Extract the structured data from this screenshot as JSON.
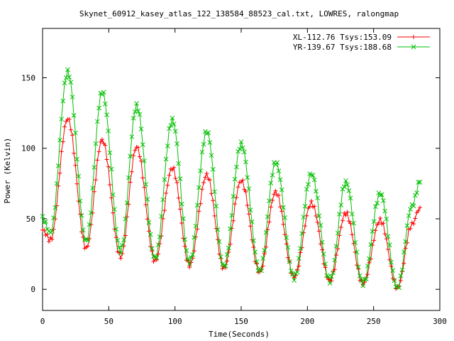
{
  "chart_data": {
    "type": "line",
    "title": "Skynet_60912_kasey_atlas_122_138584_88523_cal.txt, LOWRES, ralongmap",
    "xlabel": "Time(Seconds)",
    "ylabel": "Power (Kelvin)",
    "xlim": [
      0,
      300
    ],
    "ylim": [
      -15,
      185
    ],
    "xticks": [
      0,
      50,
      100,
      150,
      200,
      250,
      300
    ],
    "yticks": [
      0,
      50,
      100,
      150
    ],
    "grid": false,
    "legend_position": "top-right",
    "series": [
      {
        "name": "XL-112.76 Tsys:153.09",
        "color": "#ff0000",
        "marker": "plus",
        "peaks": [
          [
            0,
            42
          ],
          [
            6,
            35
          ],
          [
            19,
            121
          ],
          [
            33,
            29
          ],
          [
            45,
            106
          ],
          [
            59,
            23
          ],
          [
            71,
            101
          ],
          [
            85,
            20
          ],
          [
            98,
            86
          ],
          [
            111,
            17
          ],
          [
            124,
            81
          ],
          [
            137,
            15
          ],
          [
            150,
            77
          ],
          [
            164,
            12
          ],
          [
            176,
            69
          ],
          [
            190,
            9
          ],
          [
            203,
            61
          ],
          [
            217,
            6
          ],
          [
            229,
            54
          ],
          [
            242,
            4
          ],
          [
            255,
            49
          ],
          [
            268,
            1
          ],
          [
            279,
            46
          ],
          [
            285,
            58
          ]
        ]
      },
      {
        "name": "YR-139.67 Tsys:188.68",
        "color": "#00c000",
        "marker": "cross",
        "peaks": [
          [
            0,
            50
          ],
          [
            6,
            40
          ],
          [
            19,
            154
          ],
          [
            33,
            34
          ],
          [
            45,
            140
          ],
          [
            59,
            27
          ],
          [
            71,
            130
          ],
          [
            85,
            22
          ],
          [
            98,
            120
          ],
          [
            111,
            19
          ],
          [
            124,
            112
          ],
          [
            137,
            16
          ],
          [
            150,
            103
          ],
          [
            164,
            13
          ],
          [
            176,
            90
          ],
          [
            190,
            8
          ],
          [
            203,
            82
          ],
          [
            217,
            6
          ],
          [
            229,
            76
          ],
          [
            242,
            4
          ],
          [
            255,
            68
          ],
          [
            268,
            1
          ],
          [
            279,
            59
          ],
          [
            285,
            76
          ]
        ]
      }
    ]
  }
}
